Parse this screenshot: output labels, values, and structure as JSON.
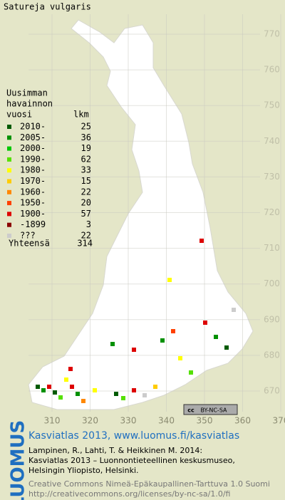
{
  "title": "Satureja vulgaris",
  "legend": {
    "header": [
      "Uusimman",
      "havainnon",
      "vuosi"
    ],
    "count_header": "lkm",
    "rows": [
      {
        "label": "2010-",
        "count": "25",
        "color": "#005a00"
      },
      {
        "label": "2005-",
        "count": "36",
        "color": "#009000"
      },
      {
        "label": "2000-",
        "count": "19",
        "color": "#00c800"
      },
      {
        "label": "1990-",
        "count": "62",
        "color": "#55e000"
      },
      {
        "label": "1980-",
        "count": "33",
        "color": "#ffff00"
      },
      {
        "label": "1970-",
        "count": "15",
        "color": "#ffcc00"
      },
      {
        "label": "1960-",
        "count": "22",
        "color": "#ff8800"
      },
      {
        "label": "1950-",
        "count": "20",
        "color": "#ff4000"
      },
      {
        "label": "1900-",
        "count": "57",
        "color": "#dd0000"
      },
      {
        "label": "-1899",
        "count": "3",
        "color": "#8a0000"
      },
      {
        "label": "???",
        "count": "22",
        "color": "#cccccc"
      }
    ],
    "total": {
      "label": "Yhteensä",
      "count": "314"
    }
  },
  "grid": {
    "y_labels": [
      770,
      760,
      750,
      740,
      730,
      720,
      710,
      700,
      690,
      680,
      670
    ],
    "x_labels": [
      310,
      320,
      330,
      340,
      350,
      360,
      370
    ]
  },
  "badge": {
    "cc": "cc",
    "license": "BY-NC-SA"
  },
  "footer": {
    "logo": "LUOMUS",
    "headline": "Kasviatlas 2013, www.luomus.fi/kasviatlas",
    "citation": [
      "Lampinen, R., Lahti, T. & Heikkinen M. 2014:",
      "Kasviatlas 2013 – Luonnontieteellinen keskusmuseo,",
      "Helsingin Yliopisto, Helsinki."
    ],
    "license": [
      "Creative Commons Nimeä-Epäkaupallinen-Tarttuva 1.0 Suomi",
      "http://creativecommons.org/licenses/by-nc-sa/1.0/fi"
    ]
  }
}
